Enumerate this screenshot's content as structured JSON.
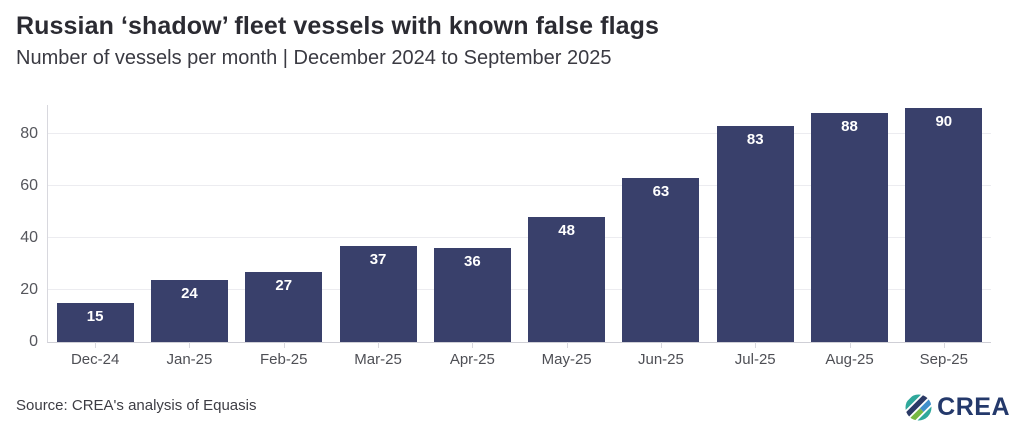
{
  "chart_data": {
    "type": "bar",
    "title": "Russian ‘shadow’ fleet vessels with known false flags",
    "subtitle": "Number of vessels per month | December 2024 to September 2025",
    "categories": [
      "Dec-24",
      "Jan-25",
      "Feb-25",
      "Mar-25",
      "Apr-25",
      "May-25",
      "Jun-25",
      "Jul-25",
      "Aug-25",
      "Sep-25"
    ],
    "values": [
      15,
      24,
      27,
      37,
      36,
      48,
      63,
      83,
      88,
      90
    ],
    "xlabel": "",
    "ylabel": "",
    "ylim": [
      0,
      91.2
    ],
    "yticks": [
      0,
      20,
      40,
      60,
      80
    ],
    "grid": "horizontal",
    "legend": "none",
    "bar_color": "#39406B",
    "value_label_color": "#FFFFFF"
  },
  "footer": {
    "source": "Source: CREA's analysis of Equasis",
    "logo_text": "CREA",
    "logo_colors": {
      "teal": "#2FA89B",
      "navy": "#2B3A66",
      "green": "#76B843",
      "blue": "#3E8FCB"
    }
  }
}
